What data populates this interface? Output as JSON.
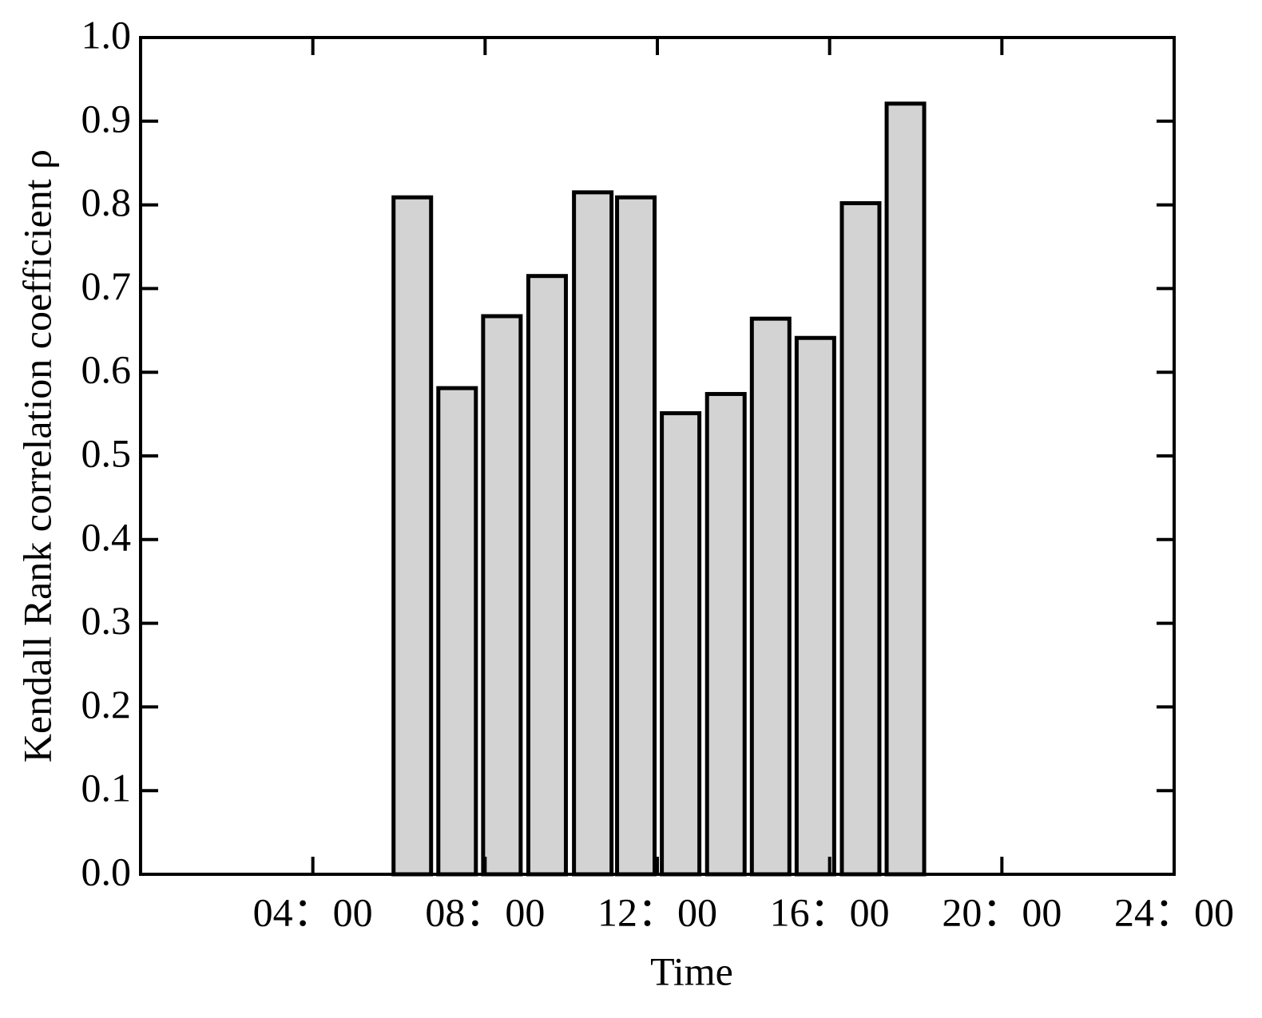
{
  "chart_data": {
    "type": "bar",
    "x_label": "Time",
    "y_label": "Kendall Rank correlation coefficient ρ",
    "x": [
      6.31,
      7.35,
      8.39,
      9.44,
      10.5,
      11.5,
      12.54,
      13.59,
      14.63,
      15.67,
      16.72,
      17.76
    ],
    "values": [
      0.809,
      0.581,
      0.667,
      0.715,
      0.815,
      0.809,
      0.551,
      0.574,
      0.664,
      0.641,
      0.802,
      0.921
    ],
    "color": "#d3d3d3",
    "xlim": [
      0,
      24
    ],
    "xticks": [
      {
        "value": 4,
        "label": "04：00"
      },
      {
        "value": 8,
        "label": "08：00"
      },
      {
        "value": 12,
        "label": "12：00"
      },
      {
        "value": 16,
        "label": "16：00"
      },
      {
        "value": 20,
        "label": "20：00"
      },
      {
        "value": 24,
        "label": "24：00"
      }
    ],
    "ylim": [
      0,
      1
    ],
    "yticks": [
      {
        "value": 0,
        "label": "0.0"
      },
      0.1,
      0.2,
      0.3,
      0.4,
      0.5,
      0.6,
      0.7,
      0.8,
      0.9,
      {
        "value": 1,
        "label": "1.0"
      }
    ],
    "grid": false
  }
}
